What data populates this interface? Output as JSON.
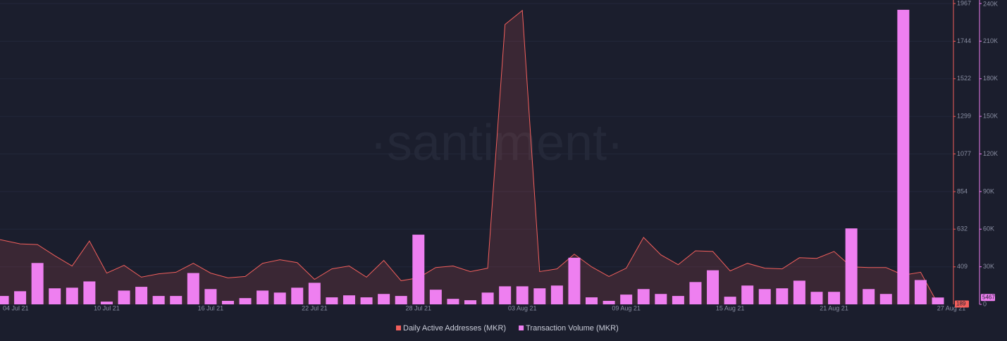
{
  "chart_data": {
    "type": "combo",
    "watermark": "·santiment·",
    "categories": [
      "04 Jul 21",
      null,
      null,
      null,
      null,
      null,
      "10 Jul 21",
      null,
      null,
      null,
      null,
      null,
      "16 Jul 21",
      null,
      null,
      null,
      null,
      null,
      "22 Jul 21",
      null,
      null,
      null,
      null,
      null,
      "28 Jul 21",
      null,
      null,
      null,
      null,
      null,
      "03 Aug 21",
      null,
      null,
      null,
      null,
      null,
      "09 Aug 21",
      null,
      null,
      null,
      null,
      null,
      "15 Aug 21",
      null,
      null,
      null,
      null,
      null,
      "21 Aug 21",
      null,
      null,
      null,
      null,
      null,
      "27 Aug 21"
    ],
    "series": [
      {
        "name": "Daily Active Addresses (MKR)",
        "type": "area",
        "color": "#f25f5c",
        "values": [
          570,
          545,
          541,
          475,
          414,
          562,
          372,
          418,
          348,
          368,
          377,
          430,
          372,
          344,
          352,
          430,
          451,
          434,
          335,
          397,
          414,
          348,
          447,
          327,
          344,
          405,
          414,
          381,
          401,
          1843,
          1926,
          381,
          397,
          484,
          409,
          352,
          401,
          583,
          480,
          422,
          504,
          500,
          385,
          430,
          401,
          397,
          463,
          459,
          500,
          409,
          405,
          405,
          360,
          377,
          189
        ]
      },
      {
        "name": "Transaction Volume (MKR)",
        "type": "bar",
        "color": "#ee7ff0",
        "axis": "y2",
        "values": [
          6700,
          10500,
          33000,
          12800,
          13300,
          18300,
          2200,
          11000,
          14000,
          6700,
          6700,
          25000,
          12200,
          2800,
          5000,
          11000,
          9400,
          13300,
          17200,
          5600,
          7200,
          5600,
          8300,
          6700,
          55600,
          11700,
          4400,
          3300,
          9400,
          14400,
          14400,
          12800,
          15000,
          37200,
          5600,
          2800,
          7800,
          12200,
          8300,
          6700,
          17800,
          27200,
          6100,
          15000,
          12200,
          12800,
          18900,
          10000,
          10000,
          60600,
          12200,
          8300,
          235000,
          19400,
          5467
        ]
      }
    ],
    "ylim": [
      187,
      1967
    ],
    "yticks": [
      409,
      632,
      854,
      1077,
      1299,
      1522,
      1744,
      1967
    ],
    "y2lim": [
      0,
      240000
    ],
    "y2ticks": [
      0,
      {
        "value": 30000,
        "label": "30K"
      },
      {
        "value": 60000,
        "label": "60K"
      },
      {
        "value": 90000,
        "label": "90K"
      },
      {
        "value": 120000,
        "label": "120K"
      },
      {
        "value": 150000,
        "label": "150K"
      },
      {
        "value": 180000,
        "label": "180K"
      },
      {
        "value": 210000,
        "label": "210K"
      },
      {
        "value": 240000,
        "label": "240K"
      }
    ],
    "grid": true
  }
}
